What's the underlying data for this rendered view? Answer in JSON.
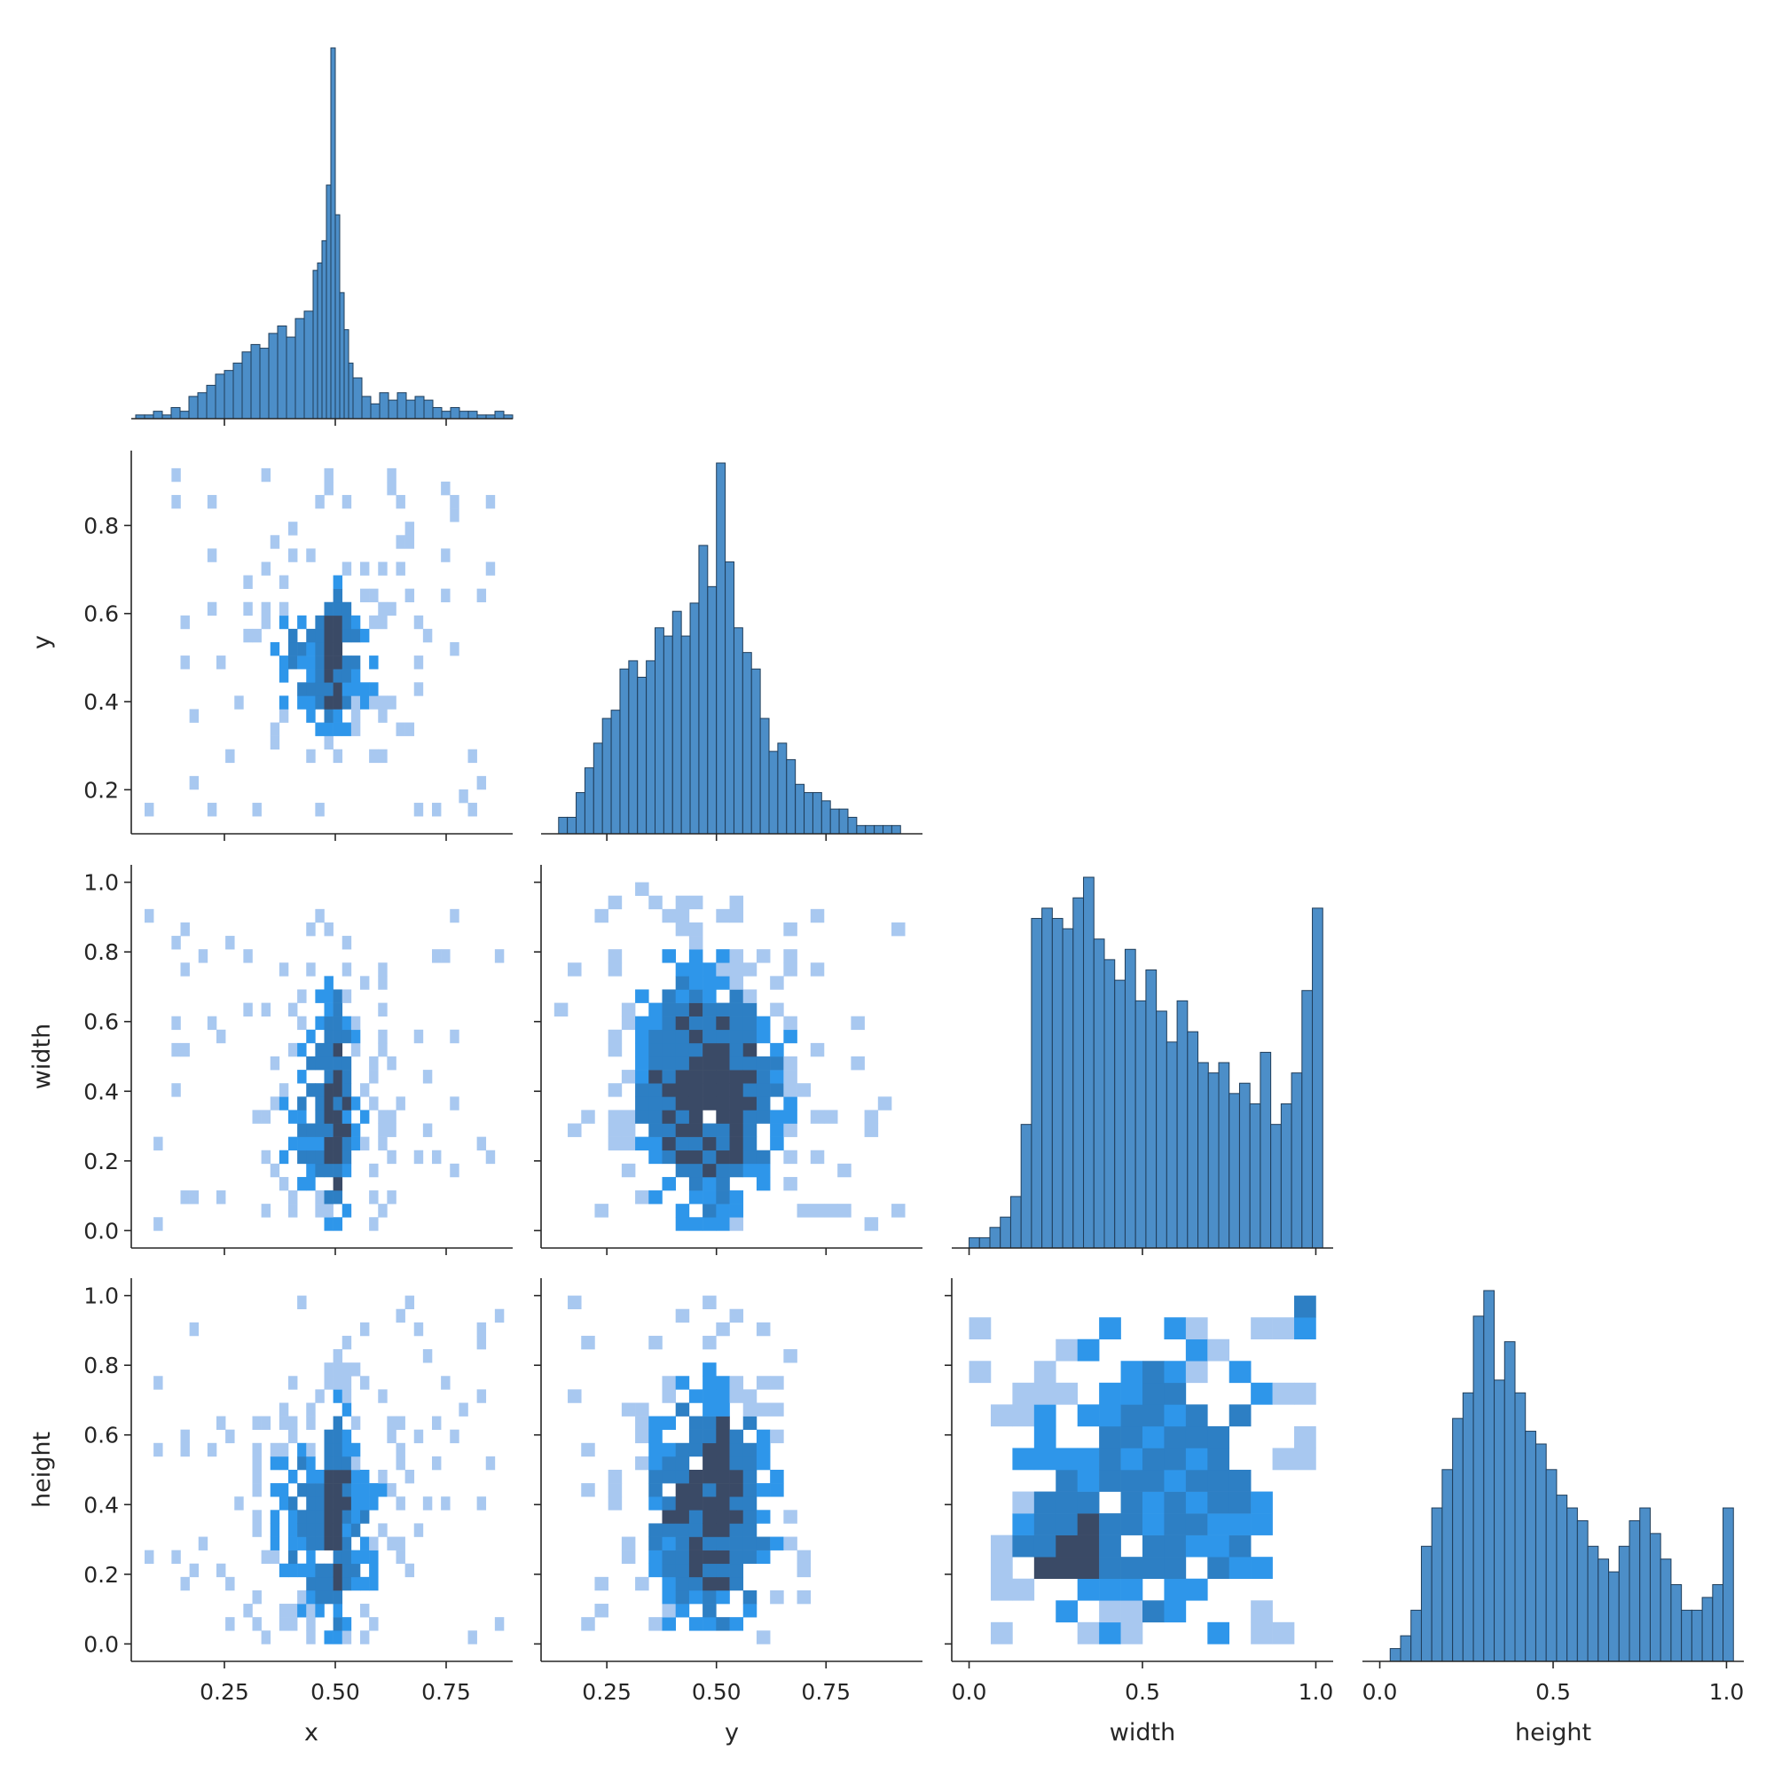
{
  "chart_data": {
    "type": "pairgrid",
    "layout": "lower-triangle corner",
    "variables": [
      "x",
      "y",
      "width",
      "height"
    ],
    "colors": {
      "hist_fill": "#4c8ec8",
      "hist_edge": "#1f3d5a",
      "heat_low": "#a8c8f0",
      "heat_mid": "#2e96ea",
      "heat_high": "#3a4a66"
    },
    "axes": {
      "x": {
        "label": "x",
        "lim": [
          0.04,
          0.9
        ],
        "ticks": [
          0.25,
          0.5,
          0.75
        ],
        "tick_labels": [
          "0.25",
          "0.50",
          "0.75"
        ]
      },
      "y": {
        "label": "y",
        "lim": [
          0.1,
          0.97
        ],
        "ticks": [
          0.2,
          0.4,
          0.6,
          0.8
        ],
        "tick_labels": [
          "0.2",
          "0.4",
          "0.6",
          "0.8"
        ],
        "col_ticks": [
          0.25,
          0.5,
          0.75
        ],
        "col_tick_labels": [
          "0.25",
          "0.50",
          "0.75"
        ]
      },
      "width": {
        "label": "width",
        "lim": [
          -0.05,
          1.05
        ],
        "ticks": [
          0.0,
          0.2,
          0.4,
          0.6,
          0.8,
          1.0
        ],
        "tick_labels": [
          "0.0",
          "0.2",
          "0.4",
          "0.6",
          "0.8",
          "1.0"
        ],
        "col_ticks": [
          0.0,
          0.5,
          1.0
        ],
        "col_tick_labels": [
          "0.0",
          "0.5",
          "1.0"
        ]
      },
      "height": {
        "label": "height",
        "lim": [
          -0.05,
          1.05
        ],
        "ticks": [
          0.0,
          0.2,
          0.4,
          0.6,
          0.8,
          1.0
        ],
        "tick_labels": [
          "0.0",
          "0.2",
          "0.4",
          "0.6",
          "0.8",
          "1.0"
        ],
        "col_ticks": [
          0.0,
          0.5,
          1.0
        ],
        "col_tick_labels": [
          "0.0",
          "0.5",
          "1.0"
        ]
      }
    },
    "diagonal_histograms": {
      "x": {
        "bins": [
          0.05,
          0.07,
          0.09,
          0.11,
          0.13,
          0.15,
          0.17,
          0.19,
          0.21,
          0.23,
          0.25,
          0.27,
          0.29,
          0.31,
          0.33,
          0.35,
          0.37,
          0.39,
          0.41,
          0.43,
          0.45,
          0.46,
          0.47,
          0.48,
          0.49,
          0.5,
          0.51,
          0.52,
          0.53,
          0.54,
          0.56,
          0.58,
          0.6,
          0.62,
          0.64,
          0.66,
          0.68,
          0.7,
          0.72,
          0.74,
          0.76,
          0.78,
          0.8,
          0.82,
          0.84,
          0.86,
          0.88
        ],
        "counts": [
          1,
          1,
          2,
          1,
          3,
          2,
          6,
          7,
          9,
          12,
          13,
          15,
          18,
          20,
          19,
          23,
          25,
          22,
          27,
          29,
          40,
          42,
          48,
          63,
          100,
          55,
          34,
          24,
          15,
          11,
          6,
          4,
          7,
          5,
          7,
          5,
          6,
          5,
          3,
          2,
          3,
          2,
          2,
          1,
          1,
          2,
          1
        ]
      },
      "y": {
        "bins": [
          0.14,
          0.16,
          0.18,
          0.2,
          0.22,
          0.24,
          0.26,
          0.28,
          0.3,
          0.32,
          0.34,
          0.36,
          0.38,
          0.4,
          0.42,
          0.44,
          0.46,
          0.48,
          0.5,
          0.52,
          0.54,
          0.56,
          0.58,
          0.6,
          0.62,
          0.64,
          0.66,
          0.68,
          0.7,
          0.72,
          0.74,
          0.76,
          0.78,
          0.8,
          0.82,
          0.84,
          0.86,
          0.88,
          0.9
        ],
        "counts": [
          2,
          2,
          5,
          8,
          11,
          14,
          15,
          20,
          21,
          19,
          21,
          25,
          24,
          27,
          24,
          28,
          35,
          30,
          45,
          33,
          25,
          22,
          20,
          14,
          10,
          11,
          9,
          6,
          5,
          5,
          4,
          3,
          3,
          2,
          1,
          1,
          1,
          1,
          1
        ]
      },
      "width": {
        "bins": [
          0.0,
          0.03,
          0.06,
          0.09,
          0.12,
          0.15,
          0.18,
          0.21,
          0.24,
          0.27,
          0.3,
          0.33,
          0.36,
          0.39,
          0.42,
          0.45,
          0.48,
          0.51,
          0.54,
          0.57,
          0.6,
          0.63,
          0.66,
          0.69,
          0.72,
          0.75,
          0.78,
          0.81,
          0.84,
          0.87,
          0.9,
          0.93,
          0.96,
          0.99
        ],
        "counts": [
          1,
          1,
          2,
          3,
          5,
          12,
          32,
          33,
          32,
          31,
          34,
          36,
          30,
          28,
          26,
          29,
          24,
          27,
          23,
          20,
          24,
          21,
          18,
          17,
          18,
          15,
          16,
          14,
          19,
          12,
          14,
          17,
          25,
          33
        ]
      },
      "height": {
        "bins": [
          0.0,
          0.03,
          0.06,
          0.09,
          0.12,
          0.15,
          0.18,
          0.21,
          0.24,
          0.27,
          0.3,
          0.33,
          0.36,
          0.39,
          0.42,
          0.45,
          0.48,
          0.51,
          0.54,
          0.57,
          0.6,
          0.63,
          0.66,
          0.69,
          0.72,
          0.75,
          0.78,
          0.81,
          0.84,
          0.87,
          0.9,
          0.93,
          0.96,
          0.99
        ],
        "counts": [
          0,
          1,
          2,
          4,
          9,
          12,
          15,
          19,
          21,
          27,
          29,
          22,
          25,
          21,
          18,
          17,
          15,
          13,
          12,
          11,
          9,
          8,
          7,
          9,
          11,
          12,
          10,
          8,
          6,
          4,
          4,
          5,
          6,
          12
        ]
      }
    },
    "bivariate_density_notes": "Offdiagonal panels are 2D histograms (count heatmaps) of each pair; darker cells = higher counts. Peaks: x near 0.5 for all y; y near 0.5 vs width ~0.35; width ~0.25 vs height ~0.3 and width ~1.0 vs height ~1.0."
  }
}
